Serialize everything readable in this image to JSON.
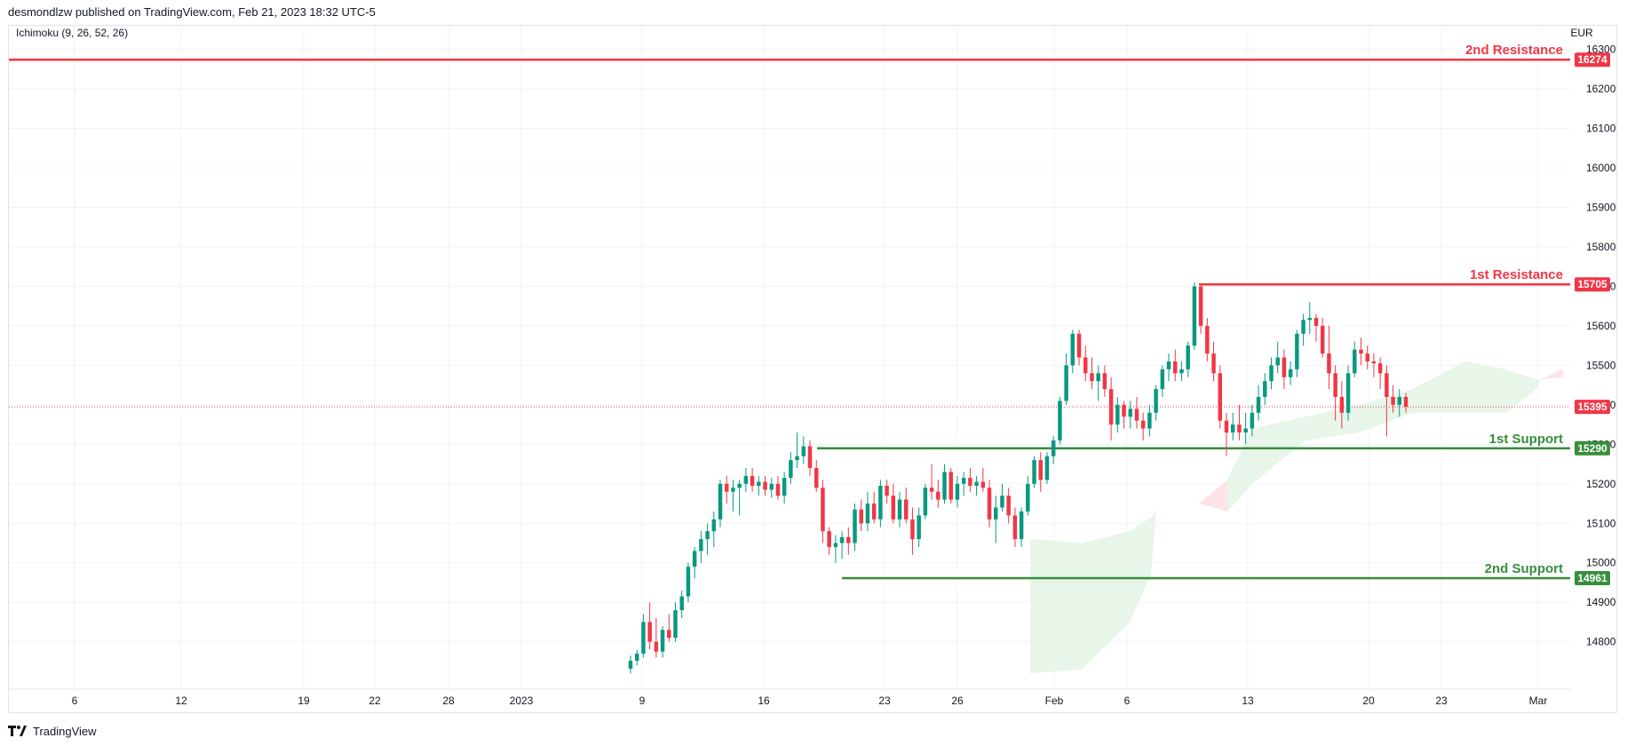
{
  "header": {
    "published": "desmondlzw published on TradingView.com, Feb 21, 2023 18:32 UTC-5"
  },
  "footer": {
    "brand": "TradingView"
  },
  "colors": {
    "up": "#089981",
    "down": "#f23645",
    "resistance": "#f23645",
    "support": "#388e3c",
    "cloud_bull": "#e8f5e9",
    "cloud_bear": "#fce4e6",
    "grid": "#f0f3fa"
  },
  "chart_data": {
    "type": "candlestick",
    "indicator": "Ichimoku (9, 26, 52, 26)",
    "currency": "EUR",
    "ylim": [
      14680,
      16360
    ],
    "y_ticks": [
      14800,
      14900,
      15000,
      15100,
      15200,
      15300,
      15400,
      15500,
      15600,
      15700,
      15800,
      15900,
      16000,
      16100,
      16200,
      16300
    ],
    "x_ticks": [
      {
        "label": "6",
        "x": 74
      },
      {
        "label": "12",
        "x": 194
      },
      {
        "label": "19",
        "x": 332
      },
      {
        "label": "22",
        "x": 412
      },
      {
        "label": "28",
        "x": 495
      },
      {
        "label": "2023",
        "x": 577
      },
      {
        "label": "9",
        "x": 713
      },
      {
        "label": "16",
        "x": 850
      },
      {
        "label": "23",
        "x": 986
      },
      {
        "label": "26",
        "x": 1068
      },
      {
        "label": "Feb",
        "x": 1177
      },
      {
        "label": "6",
        "x": 1259
      },
      {
        "label": "13",
        "x": 1395
      },
      {
        "label": "20",
        "x": 1531
      },
      {
        "label": "23",
        "x": 1613
      },
      {
        "label": "Mar",
        "x": 1722
      }
    ],
    "current_price": 15395,
    "levels": [
      {
        "name": "2nd Resistance",
        "value": 16274,
        "kind": "resistance",
        "from_x": 0
      },
      {
        "name": "1st Resistance",
        "value": 15705,
        "kind": "resistance",
        "from_x": 1340
      },
      {
        "name": "1st Support",
        "value": 15290,
        "kind": "support",
        "from_x": 910
      },
      {
        "name": "2nd Support",
        "value": 14961,
        "kind": "support",
        "from_x": 938
      }
    ],
    "candles": [
      [
        14732,
        14765,
        14720,
        14752
      ],
      [
        14752,
        14780,
        14740,
        14770
      ],
      [
        14770,
        14870,
        14760,
        14850
      ],
      [
        14850,
        14900,
        14780,
        14800
      ],
      [
        14800,
        14860,
        14760,
        14775
      ],
      [
        14775,
        14840,
        14760,
        14830
      ],
      [
        14830,
        14870,
        14800,
        14810
      ],
      [
        14810,
        14900,
        14800,
        14880
      ],
      [
        14880,
        14930,
        14860,
        14915
      ],
      [
        14915,
        15000,
        14900,
        14990
      ],
      [
        14990,
        15040,
        14960,
        15030
      ],
      [
        15030,
        15080,
        15000,
        15060
      ],
      [
        15060,
        15100,
        15020,
        15080
      ],
      [
        15080,
        15130,
        15040,
        15110
      ],
      [
        15110,
        15210,
        15090,
        15200
      ],
      [
        15200,
        15220,
        15150,
        15180
      ],
      [
        15180,
        15210,
        15130,
        15190
      ],
      [
        15190,
        15210,
        15120,
        15200
      ],
      [
        15200,
        15240,
        15180,
        15220
      ],
      [
        15220,
        15240,
        15180,
        15195
      ],
      [
        15195,
        15220,
        15170,
        15205
      ],
      [
        15205,
        15220,
        15170,
        15185
      ],
      [
        15185,
        15215,
        15165,
        15200
      ],
      [
        15200,
        15220,
        15160,
        15170
      ],
      [
        15170,
        15230,
        15150,
        15215
      ],
      [
        15215,
        15280,
        15200,
        15260
      ],
      [
        15260,
        15330,
        15240,
        15270
      ],
      [
        15270,
        15320,
        15250,
        15295
      ],
      [
        15295,
        15310,
        15220,
        15240
      ],
      [
        15240,
        15260,
        15180,
        15190
      ],
      [
        15190,
        15210,
        15050,
        15080
      ],
      [
        15080,
        15090,
        15020,
        15040
      ],
      [
        15040,
        15070,
        15000,
        15050
      ],
      [
        15050,
        15080,
        15010,
        15065
      ],
      [
        15065,
        15090,
        15020,
        15050
      ],
      [
        15050,
        15150,
        15030,
        15135
      ],
      [
        15135,
        15160,
        15080,
        15100
      ],
      [
        15100,
        15180,
        15080,
        15150
      ],
      [
        15150,
        15180,
        15100,
        15110
      ],
      [
        15110,
        15210,
        15090,
        15195
      ],
      [
        15195,
        15210,
        15150,
        15170
      ],
      [
        15170,
        15200,
        15100,
        15110
      ],
      [
        15110,
        15180,
        15090,
        15160
      ],
      [
        15160,
        15190,
        15100,
        15110
      ],
      [
        15110,
        15140,
        15020,
        15060
      ],
      [
        15060,
        15140,
        15040,
        15120
      ],
      [
        15120,
        15200,
        15110,
        15190
      ],
      [
        15190,
        15250,
        15160,
        15180
      ],
      [
        15180,
        15210,
        15140,
        15160
      ],
      [
        15160,
        15250,
        15150,
        15230
      ],
      [
        15230,
        15240,
        15150,
        15160
      ],
      [
        15160,
        15220,
        15140,
        15200
      ],
      [
        15200,
        15230,
        15170,
        15215
      ],
      [
        15215,
        15240,
        15180,
        15195
      ],
      [
        15195,
        15220,
        15170,
        15205
      ],
      [
        15205,
        15240,
        15180,
        15190
      ],
      [
        15190,
        15210,
        15090,
        15110
      ],
      [
        15110,
        15170,
        15050,
        15140
      ],
      [
        15140,
        15200,
        15130,
        15170
      ],
      [
        15170,
        15190,
        15100,
        15120
      ],
      [
        15120,
        15140,
        15040,
        15060
      ],
      [
        15060,
        15140,
        15040,
        15130
      ],
      [
        15130,
        15220,
        15120,
        15200
      ],
      [
        15200,
        15270,
        15190,
        15260
      ],
      [
        15260,
        15280,
        15180,
        15210
      ],
      [
        15210,
        15280,
        15200,
        15270
      ],
      [
        15270,
        15320,
        15250,
        15310
      ],
      [
        15310,
        15420,
        15300,
        15410
      ],
      [
        15410,
        15530,
        15400,
        15500
      ],
      [
        15500,
        15590,
        15480,
        15580
      ],
      [
        15580,
        15590,
        15500,
        15520
      ],
      [
        15520,
        15550,
        15460,
        15480
      ],
      [
        15480,
        15520,
        15440,
        15460
      ],
      [
        15460,
        15500,
        15410,
        15480
      ],
      [
        15480,
        15500,
        15420,
        15440
      ],
      [
        15440,
        15470,
        15310,
        15350
      ],
      [
        15350,
        15420,
        15330,
        15400
      ],
      [
        15400,
        15410,
        15340,
        15370
      ],
      [
        15370,
        15410,
        15340,
        15390
      ],
      [
        15390,
        15420,
        15340,
        15360
      ],
      [
        15360,
        15380,
        15310,
        15340
      ],
      [
        15340,
        15400,
        15320,
        15380
      ],
      [
        15380,
        15450,
        15360,
        15440
      ],
      [
        15440,
        15500,
        15420,
        15490
      ],
      [
        15490,
        15530,
        15460,
        15510
      ],
      [
        15510,
        15540,
        15460,
        15480
      ],
      [
        15480,
        15510,
        15460,
        15490
      ],
      [
        15490,
        15560,
        15470,
        15550
      ],
      [
        15550,
        15710,
        15540,
        15700
      ],
      [
        15700,
        15705,
        15580,
        15600
      ],
      [
        15600,
        15620,
        15510,
        15530
      ],
      [
        15530,
        15560,
        15460,
        15480
      ],
      [
        15480,
        15500,
        15340,
        15360
      ],
      [
        15360,
        15380,
        15270,
        15330
      ],
      [
        15330,
        15380,
        15310,
        15350
      ],
      [
        15350,
        15400,
        15310,
        15330
      ],
      [
        15330,
        15380,
        15300,
        15340
      ],
      [
        15340,
        15400,
        15320,
        15380
      ],
      [
        15380,
        15450,
        15360,
        15420
      ],
      [
        15420,
        15480,
        15400,
        15460
      ],
      [
        15460,
        15520,
        15440,
        15500
      ],
      [
        15500,
        15560,
        15480,
        15520
      ],
      [
        15520,
        15540,
        15440,
        15470
      ],
      [
        15470,
        15510,
        15450,
        15490
      ],
      [
        15490,
        15590,
        15470,
        15580
      ],
      [
        15580,
        15630,
        15550,
        15615
      ],
      [
        15615,
        15660,
        15580,
        15620
      ],
      [
        15620,
        15630,
        15560,
        15600
      ],
      [
        15600,
        15620,
        15520,
        15530
      ],
      [
        15530,
        15600,
        15440,
        15480
      ],
      [
        15480,
        15500,
        15360,
        15420
      ],
      [
        15420,
        15460,
        15340,
        15380
      ],
      [
        15380,
        15500,
        15360,
        15480
      ],
      [
        15480,
        15560,
        15470,
        15540
      ],
      [
        15540,
        15570,
        15500,
        15530
      ],
      [
        15530,
        15550,
        15490,
        15510
      ],
      [
        15510,
        15530,
        15470,
        15505
      ],
      [
        15505,
        15520,
        15440,
        15480
      ],
      [
        15480,
        15500,
        15320,
        15420
      ],
      [
        15420,
        15450,
        15380,
        15400
      ],
      [
        15400,
        15440,
        15370,
        15420
      ],
      [
        15420,
        15430,
        15380,
        15395
      ]
    ],
    "cloud": [
      {
        "price_x": 1150,
        "a": 15060,
        "b": 14720,
        "bull": true
      },
      {
        "price_x": 1208,
        "a": 15050,
        "b": 14730,
        "bull": true
      },
      {
        "price_x": 1262,
        "a": 15080,
        "b": 14850,
        "bull": true
      },
      {
        "price_x": 1286,
        "a": 15115,
        "b": 14970,
        "bull": true
      },
      {
        "price_x": 1292,
        "a": 15135,
        "b": 15135,
        "bull": false
      },
      {
        "price_x": 1340,
        "a": 15150,
        "b": 15150,
        "bull": false
      },
      {
        "price_x": 1372,
        "a": 15210,
        "b": 15130,
        "bull": true
      },
      {
        "price_x": 1400,
        "a": 15340,
        "b": 15200,
        "bull": true
      },
      {
        "price_x": 1460,
        "a": 15370,
        "b": 15310,
        "bull": true
      },
      {
        "price_x": 1520,
        "a": 15400,
        "b": 15330,
        "bull": true
      },
      {
        "price_x": 1580,
        "a": 15440,
        "b": 15380,
        "bull": true
      },
      {
        "price_x": 1640,
        "a": 15510,
        "b": 15380,
        "bull": true
      },
      {
        "price_x": 1686,
        "a": 15490,
        "b": 15380,
        "bull": true
      },
      {
        "price_x": 1720,
        "a": 15465,
        "b": 15440,
        "bull": true
      },
      {
        "price_x": 1724,
        "a": 15465,
        "b": 15465,
        "bull": false
      },
      {
        "price_x": 1750,
        "a": 15470,
        "b": 15490,
        "bull": false
      }
    ]
  }
}
